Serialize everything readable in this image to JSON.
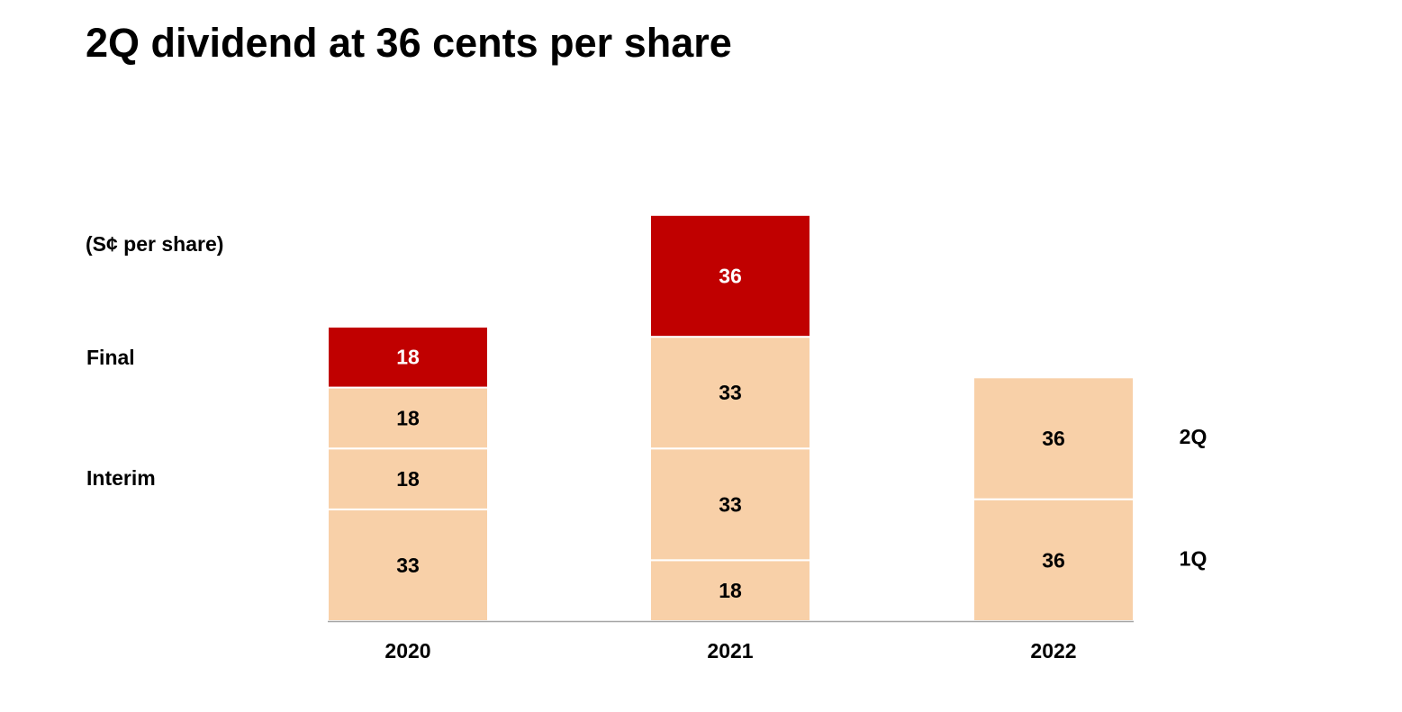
{
  "title": "2Q dividend at 36 cents per share",
  "unit_label": "(S¢ per share)",
  "row_labels": {
    "final": "Final",
    "interim": "Interim"
  },
  "colors": {
    "final": "#C00000",
    "interim": "#F8D0A8",
    "axis": "#A6A6A6",
    "label_on_final": "#FFFFFF",
    "label_on_interim": "#000000"
  },
  "chart_data": {
    "type": "bar",
    "stacked": true,
    "categories": [
      "2020",
      "2021",
      "2022"
    ],
    "bars": [
      {
        "category": "2020",
        "segments": [
          {
            "value": 33,
            "label": "33",
            "kind": "interim"
          },
          {
            "value": 18,
            "label": "18",
            "kind": "interim"
          },
          {
            "value": 18,
            "label": "18",
            "kind": "interim"
          },
          {
            "value": 18,
            "label": "18",
            "kind": "final"
          }
        ]
      },
      {
        "category": "2021",
        "segments": [
          {
            "value": 18,
            "label": "18",
            "kind": "interim"
          },
          {
            "value": 33,
            "label": "33",
            "kind": "interim"
          },
          {
            "value": 33,
            "label": "33",
            "kind": "interim"
          },
          {
            "value": 36,
            "label": "36",
            "kind": "final"
          }
        ]
      },
      {
        "category": "2022",
        "segments": [
          {
            "value": 36,
            "label": "36",
            "kind": "interim",
            "side_label": "1Q"
          },
          {
            "value": 36,
            "label": "36",
            "kind": "interim",
            "side_label": "2Q"
          }
        ]
      }
    ],
    "title": "2Q dividend at 36 cents per share",
    "ylabel": "(S¢ per share)",
    "grid": false
  }
}
